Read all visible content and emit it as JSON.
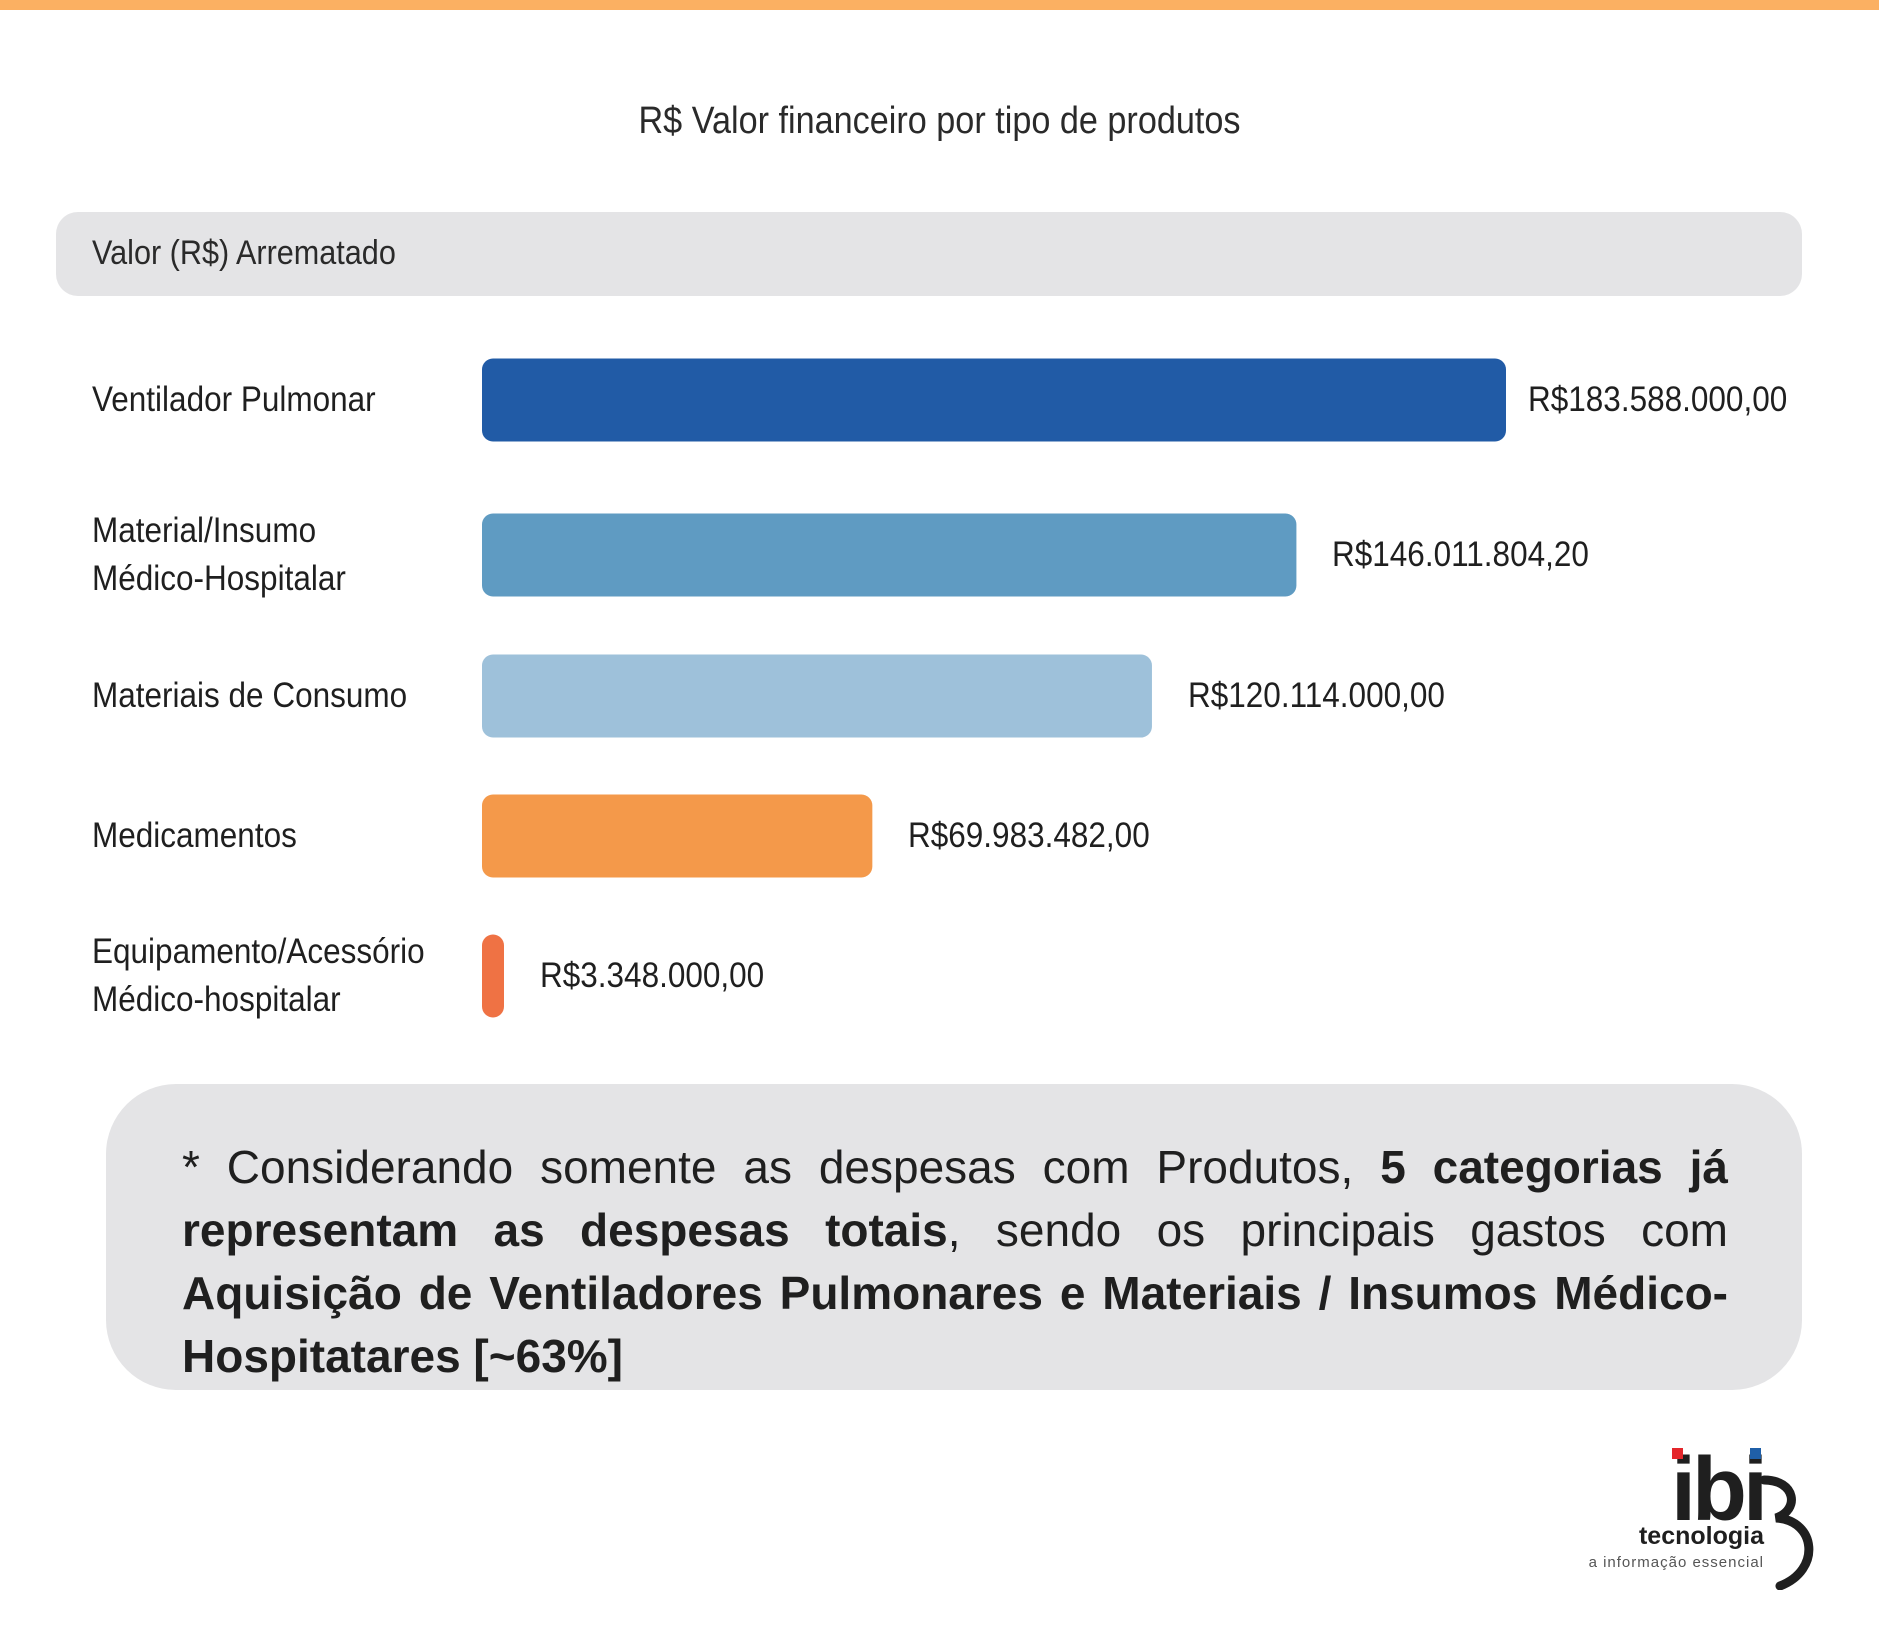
{
  "title": "R$ Valor financeiro por tipo de produtos",
  "header_label": "Valor (R$) Arrematado",
  "chart_data": {
    "type": "bar",
    "orientation": "horizontal",
    "title": "R$ Valor financeiro por tipo de produtos",
    "categories": [
      "Ventilador Pulmonar",
      "Material/Insumo\nMédico-Hospitalar",
      "Materiais de Consumo",
      "Medicamentos",
      "Equipamento/Acessório\nMédico-hospitalar"
    ],
    "values": [
      183588000.0,
      146011804.2,
      120114000.0,
      69983482.0,
      3348000.0
    ],
    "value_labels": [
      "R$183.588.000,00",
      "R$146.011.804,20",
      "R$120.114.000,00",
      "R$69.983.482,00",
      "R$3.348.000,00"
    ],
    "colors": [
      "#215ba6",
      "#5f9bc2",
      "#9ec1da",
      "#f4994a",
      "#ef7244"
    ],
    "xlim": [
      0,
      183588000
    ],
    "grid": false,
    "legend": "none"
  },
  "note": {
    "parts": [
      {
        "text": "* Considerando somente as despesas com Produtos, ",
        "bold": false
      },
      {
        "text": "5 categorias já representam as despesas totais",
        "bold": true
      },
      {
        "text": ", sendo os principais gastos com ",
        "bold": false
      },
      {
        "text": "Aquisição de Ventiladores Pulmonares e Materiais / Insumos Médico-Hospitatares [~63%]",
        "bold": true
      }
    ]
  },
  "logo": {
    "word": "ibi",
    "name": "tecnologia",
    "tagline": "a informação essencial"
  }
}
